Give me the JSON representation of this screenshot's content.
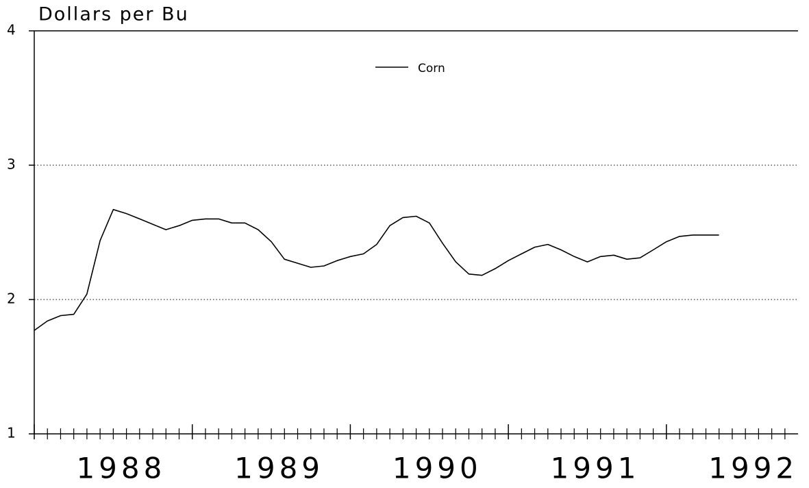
{
  "chart_data": {
    "type": "line",
    "title": "Dollars per Bu",
    "x": [
      1988,
      1988.083,
      1988.167,
      1988.25,
      1988.333,
      1988.417,
      1988.5,
      1988.583,
      1988.667,
      1988.75,
      1988.833,
      1988.917,
      1989,
      1989.083,
      1989.167,
      1989.25,
      1989.333,
      1989.417,
      1989.5,
      1989.583,
      1989.667,
      1989.75,
      1989.833,
      1989.917,
      1990,
      1990.083,
      1990.167,
      1990.25,
      1990.333,
      1990.417,
      1990.5,
      1990.583,
      1990.667,
      1990.75,
      1990.833,
      1990.917,
      1991,
      1991.083,
      1991.167,
      1991.25,
      1991.333,
      1991.417,
      1991.5,
      1991.583,
      1991.667,
      1991.75,
      1991.833,
      1991.917,
      1992,
      1992.083,
      1992.167,
      1992.25,
      1992.333
    ],
    "series": [
      {
        "name": "Corn",
        "color": "#000000",
        "values": [
          1.77,
          1.84,
          1.88,
          1.89,
          2.04,
          2.44,
          2.67,
          2.64,
          2.6,
          2.56,
          2.52,
          2.55,
          2.59,
          2.6,
          2.6,
          2.57,
          2.57,
          2.52,
          2.43,
          2.3,
          2.27,
          2.24,
          2.25,
          2.29,
          2.32,
          2.34,
          2.41,
          2.55,
          2.61,
          2.62,
          2.57,
          2.42,
          2.28,
          2.19,
          2.18,
          2.23,
          2.29,
          2.34,
          2.39,
          2.41,
          2.37,
          2.32,
          2.28,
          2.32,
          2.33,
          2.3,
          2.31,
          2.37,
          2.43,
          2.47,
          2.48,
          2.48,
          2.48
        ]
      }
    ],
    "xlim": [
      1988,
      1992.833
    ],
    "xticks": [
      1988,
      1989,
      1990,
      1991,
      1992
    ],
    "ylim": [
      1,
      4
    ],
    "yticks": [
      1,
      2,
      3,
      4
    ],
    "grid": true
  }
}
